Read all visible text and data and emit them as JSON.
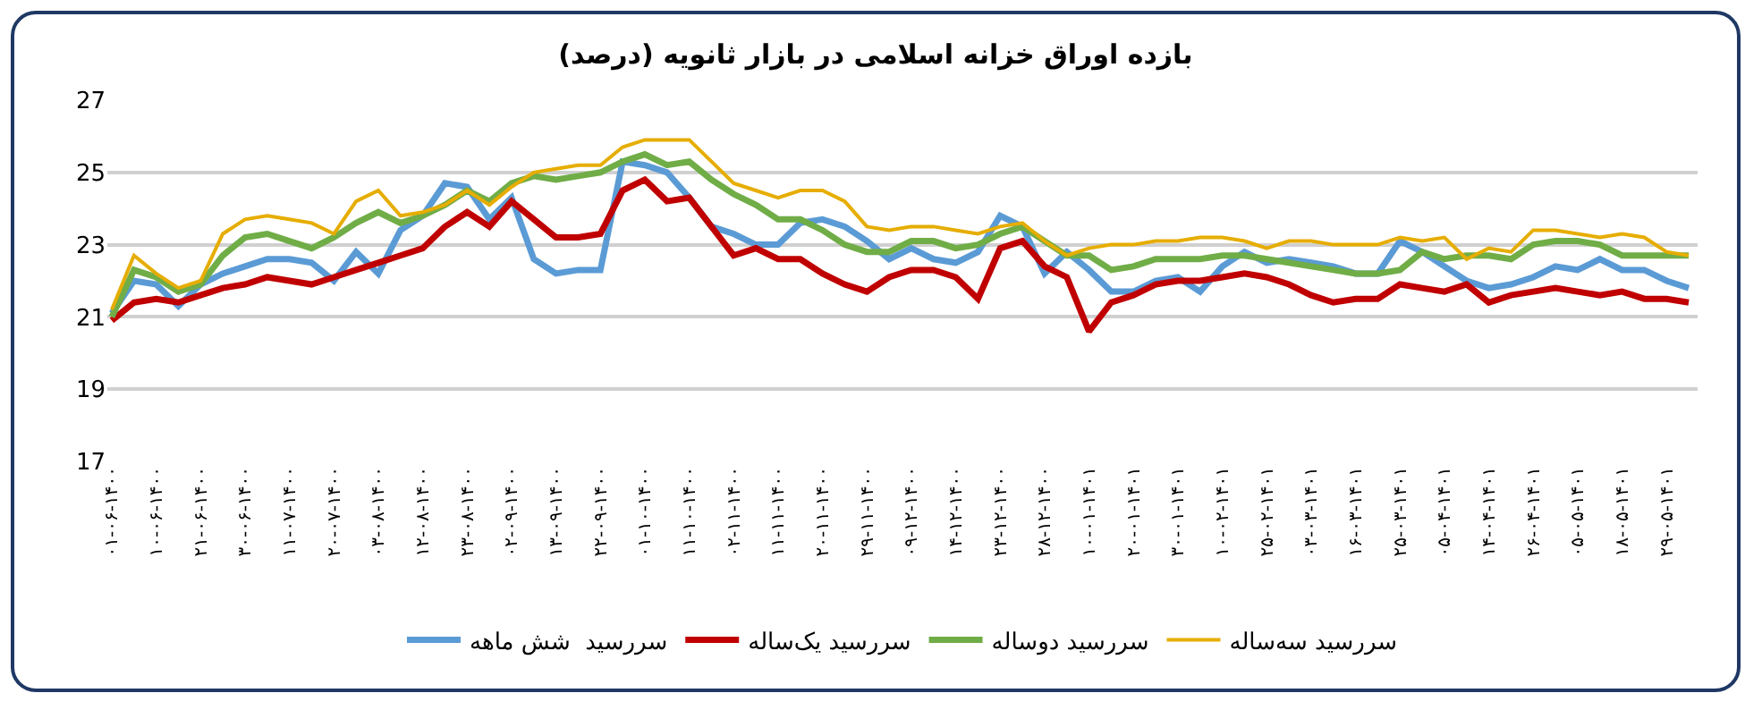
{
  "chart_data": {
    "type": "line",
    "title": "بازده اوراق خزانه اسلامی در بازار ثانویه (درصد)",
    "categories": [
      "۰۱-۰۶-۱۴۰۰",
      null,
      "۱۰-۰۶-۱۴۰۰",
      null,
      "۲۱-۰۶-۱۴۰۰",
      null,
      "۳۰-۰۶-۱۴۰۰",
      null,
      "۱۱-۰۷-۱۴۰۰",
      null,
      "۲۰-۰۷-۱۴۰۰",
      null,
      "۰۳-۰۸-۱۴۰۰",
      null,
      "۱۲-۰۸-۱۴۰۰",
      null,
      "۲۳-۰۸-۱۴۰۰",
      null,
      "۰۲-۰۹-۱۴۰۰",
      null,
      "۱۳-۰۹-۱۴۰۰",
      null,
      "۲۲-۰۹-۱۴۰۰",
      null,
      "۰۱-۱۰-۱۴۰۰",
      null,
      "۱۱-۱۰-۱۴۰۰",
      null,
      "۰۲-۱۱-۱۴۰۰",
      null,
      "۱۱-۱۱-۱۴۰۰",
      null,
      "۲۰-۱۱-۱۴۰۰",
      null,
      "۲۹-۱۱-۱۴۰۰",
      null,
      "۰۹-۱۲-۱۴۰۰",
      null,
      "۱۴-۱۲-۱۴۰۰",
      null,
      "۲۳-۱۲-۱۴۰۰",
      null,
      "۲۸-۱۲-۱۴۰۰",
      null,
      "۱۰-۰۱-۱۴۰۱",
      null,
      "۲۰-۰۱-۱۴۰۱",
      null,
      "۳۰-۰۱-۱۴۰۱",
      null,
      "۱۰-۰۲-۱۴۰۱",
      null,
      "۲۵-۰۲-۱۴۰۱",
      null,
      "۰۳-۰۳-۱۴۰۱",
      null,
      "۱۶-۰۳-۱۴۰۱",
      null,
      "۲۵-۰۳-۱۴۰۱",
      null,
      "۰۵-۰۴-۱۴۰۱",
      null,
      "۱۴-۰۴-۱۴۰۱",
      null,
      "۲۶-۰۴-۱۴۰۱",
      null,
      "۰۵-۰۵-۱۴۰۱",
      null,
      "۱۸-۰۵-۱۴۰۱",
      null,
      "۲۹-۰۵-۱۴۰۱",
      null
    ],
    "series": [
      {
        "name": "سررسید  شش ماهه",
        "color": "#5b9bd5",
        "values": [
          21.1,
          22.0,
          21.9,
          21.3,
          21.9,
          22.2,
          22.4,
          22.6,
          22.6,
          22.5,
          22.0,
          22.8,
          22.2,
          23.4,
          23.8,
          24.7,
          24.6,
          23.7,
          24.3,
          22.6,
          22.2,
          22.3,
          22.3,
          25.3,
          25.2,
          25.0,
          24.3,
          23.5,
          23.3,
          23.0,
          23.0,
          23.6,
          23.7,
          23.5,
          23.1,
          22.6,
          22.9,
          22.6,
          22.5,
          22.8,
          23.8,
          23.5,
          22.2,
          22.8,
          22.3,
          21.7,
          21.7,
          22.0,
          22.1,
          21.7,
          22.4,
          22.8,
          22.5,
          22.6,
          22.5,
          22.4,
          22.2,
          22.2,
          23.1,
          22.8,
          22.4,
          22.0,
          21.8,
          21.9,
          22.1,
          22.4,
          22.3,
          22.6,
          22.3,
          22.3,
          22.0,
          21.8
        ]
      },
      {
        "name": "سررسید یک‌ساله",
        "color": "#c00000",
        "values": [
          20.9,
          21.4,
          21.5,
          21.4,
          21.6,
          21.8,
          21.9,
          22.1,
          22.0,
          21.9,
          22.1,
          22.3,
          22.5,
          22.7,
          22.9,
          23.5,
          23.9,
          23.5,
          24.2,
          23.7,
          23.2,
          23.2,
          23.3,
          24.5,
          24.8,
          24.2,
          24.3,
          23.5,
          22.7,
          22.9,
          22.6,
          22.6,
          22.2,
          21.9,
          21.7,
          22.1,
          22.3,
          22.3,
          22.1,
          21.5,
          22.9,
          23.1,
          22.4,
          22.1,
          20.6,
          21.4,
          21.6,
          21.9,
          22.0,
          22.0,
          22.1,
          22.2,
          22.1,
          21.9,
          21.6,
          21.4,
          21.5,
          21.5,
          21.9,
          21.8,
          21.7,
          21.9,
          21.4,
          21.6,
          21.7,
          21.8,
          21.7,
          21.6,
          21.7,
          21.5,
          21.5,
          21.4
        ]
      },
      {
        "name": "سررسید دوساله",
        "color": "#70ad47",
        "values": [
          21.0,
          22.3,
          22.1,
          21.7,
          21.9,
          22.7,
          23.2,
          23.3,
          23.1,
          22.9,
          23.2,
          23.6,
          23.9,
          23.6,
          23.8,
          24.1,
          24.5,
          24.2,
          24.7,
          24.9,
          24.8,
          24.9,
          25.0,
          25.3,
          25.5,
          25.2,
          25.3,
          24.8,
          24.4,
          24.1,
          23.7,
          23.7,
          23.4,
          23.0,
          22.8,
          22.8,
          23.1,
          23.1,
          22.9,
          23.0,
          23.3,
          23.5,
          23.1,
          22.7,
          22.7,
          22.3,
          22.4,
          22.6,
          22.6,
          22.6,
          22.7,
          22.7,
          22.6,
          22.5,
          22.4,
          22.3,
          22.2,
          22.2,
          22.3,
          22.8,
          22.6,
          22.7,
          22.7,
          22.6,
          23.0,
          23.1,
          23.1,
          23.0,
          22.7,
          22.7,
          22.7,
          22.7
        ]
      },
      {
        "name": "سررسید سه‌ساله",
        "color": "#e6ad00",
        "values": [
          21.2,
          22.7,
          22.2,
          21.8,
          22.0,
          23.3,
          23.7,
          23.8,
          23.7,
          23.6,
          23.3,
          24.2,
          24.5,
          23.8,
          23.9,
          24.1,
          24.5,
          24.1,
          24.6,
          25.0,
          25.1,
          25.2,
          25.2,
          25.7,
          25.9,
          25.9,
          25.9,
          25.3,
          24.7,
          24.5,
          24.3,
          24.5,
          24.5,
          24.2,
          23.5,
          23.4,
          23.5,
          23.5,
          23.4,
          23.3,
          23.5,
          23.6,
          23.1,
          22.7,
          22.9,
          23.0,
          23.0,
          23.1,
          23.1,
          23.2,
          23.2,
          23.1,
          22.9,
          23.1,
          23.1,
          23.0,
          23.0,
          23.0,
          23.2,
          23.1,
          23.2,
          22.6,
          22.9,
          22.8,
          23.4,
          23.4,
          23.3,
          23.2,
          23.3,
          23.2,
          22.8,
          22.7
        ]
      }
    ],
    "ylim": [
      17,
      27
    ],
    "yticks": [
      17,
      19,
      21,
      23,
      25,
      27
    ],
    "grid": "y",
    "legend": "bottom",
    "marker": "none",
    "line_style": "solid"
  }
}
